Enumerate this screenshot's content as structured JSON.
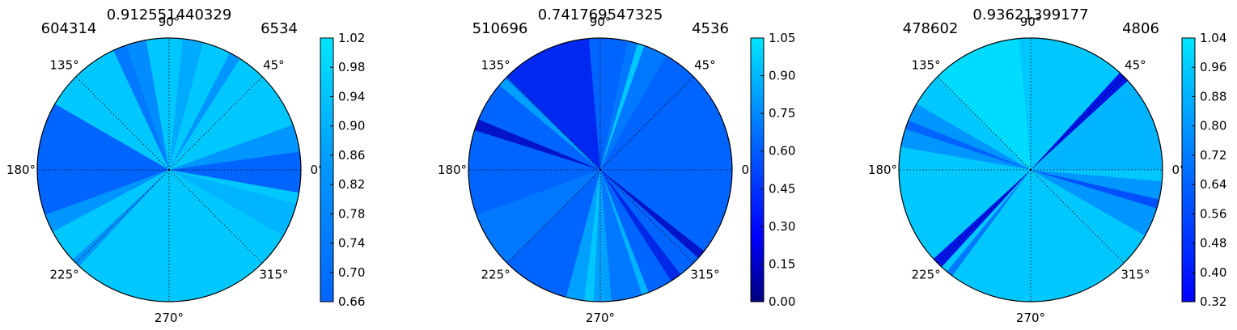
{
  "chart_data": [
    {
      "type": "heatmap",
      "projection": "polar",
      "title": "0.912551440329",
      "left_label": "604314",
      "right_label": "6534",
      "angle_ticks": [
        "0°",
        "45°",
        "90°",
        "135°",
        "180°",
        "225°",
        "270°",
        "315°"
      ],
      "colorbar": {
        "min": 0.66,
        "max": 1.02,
        "ticks": [
          "1.02",
          "0.98",
          "0.94",
          "0.90",
          "0.86",
          "0.82",
          "0.78",
          "0.74",
          "0.70",
          "0.66"
        ]
      },
      "base_color": "#00c8ff",
      "regions": [
        {
          "from_deg": -10,
          "to_deg": 8,
          "color": "#0064ff"
        },
        {
          "from_deg": 8,
          "to_deg": 20,
          "color": "#0096ff"
        },
        {
          "from_deg": 150,
          "to_deg": 200,
          "color": "#0064ff"
        },
        {
          "from_deg": 200,
          "to_deg": 208,
          "color": "#0096ff"
        },
        {
          "from_deg": 100,
          "to_deg": 112,
          "color": "#008cff"
        },
        {
          "from_deg": 75,
          "to_deg": 84,
          "color": "#00aaff"
        },
        {
          "from_deg": 330,
          "to_deg": 345,
          "color": "#00b4ff"
        }
      ],
      "rays": [
        {
          "deg": 112,
          "width_deg": 6,
          "color": "#0078ff"
        },
        {
          "deg": 60,
          "width_deg": 5,
          "color": "#0096ff"
        },
        {
          "deg": 225,
          "width_deg": 4,
          "color": "#0096ff"
        }
      ]
    },
    {
      "type": "heatmap",
      "projection": "polar",
      "title": "0.741769547325",
      "left_label": "510696",
      "right_label": "4536",
      "angle_ticks": [
        "0°",
        "45°",
        "90°",
        "135°",
        "180°",
        "225°",
        "270°",
        "315°"
      ],
      "colorbar": {
        "min": 0.0,
        "max": 1.05,
        "ticks": [
          "1.05",
          "0.90",
          "0.75",
          "0.60",
          "0.45",
          "0.30",
          "0.15",
          "0.00"
        ]
      },
      "base_color": "#0064ff",
      "regions": [
        {
          "from_deg": 95,
          "to_deg": 135,
          "color": "#0028f0"
        },
        {
          "from_deg": 255,
          "to_deg": 275,
          "color": "#00a0ff"
        },
        {
          "from_deg": 275,
          "to_deg": 290,
          "color": "#0078ff"
        },
        {
          "from_deg": 200,
          "to_deg": 225,
          "color": "#0078ff"
        },
        {
          "from_deg": 60,
          "to_deg": 78,
          "color": "#0078ff"
        }
      ],
      "rays": [
        {
          "deg": 160,
          "width_deg": 5,
          "color": "#0014c8"
        },
        {
          "deg": 138,
          "width_deg": 4,
          "color": "#00a0ff"
        },
        {
          "deg": 305,
          "width_deg": 5,
          "color": "#0028e6"
        },
        {
          "deg": 320,
          "width_deg": 4,
          "color": "#0014c8"
        },
        {
          "deg": 290,
          "width_deg": 3,
          "color": "#00b4ff"
        },
        {
          "deg": 265,
          "width_deg": 4,
          "color": "#00c8ff"
        },
        {
          "deg": 72,
          "width_deg": 3,
          "color": "#00c8ff"
        }
      ]
    },
    {
      "type": "heatmap",
      "projection": "polar",
      "title": "0.93621399177",
      "left_label": "478602",
      "right_label": "4806",
      "angle_ticks": [
        "0°",
        "45°",
        "90°",
        "135°",
        "180°",
        "225°",
        "270°",
        "315°"
      ],
      "colorbar": {
        "min": 0.32,
        "max": 1.04,
        "ticks": [
          "1.04",
          "0.96",
          "0.88",
          "0.80",
          "0.72",
          "0.64",
          "0.56",
          "0.48",
          "0.40",
          "0.32"
        ]
      },
      "base_color": "#00c8ff",
      "regions": [
        {
          "from_deg": 0,
          "to_deg": 42,
          "color": "#00b4ff"
        },
        {
          "from_deg": 95,
          "to_deg": 135,
          "color": "#00dcff"
        },
        {
          "from_deg": 150,
          "to_deg": 170,
          "color": "#0096ff"
        },
        {
          "from_deg": 330,
          "to_deg": 355,
          "color": "#0096ff"
        }
      ],
      "rays": [
        {
          "deg": 45,
          "width_deg": 5,
          "color": "#0014e6"
        },
        {
          "deg": 225,
          "width_deg": 5,
          "color": "#0014e6"
        },
        {
          "deg": 160,
          "width_deg": 4,
          "color": "#0064ff"
        },
        {
          "deg": 345,
          "width_deg": 4,
          "color": "#0050ff"
        },
        {
          "deg": 232,
          "width_deg": 3,
          "color": "#0078ff"
        }
      ]
    }
  ]
}
